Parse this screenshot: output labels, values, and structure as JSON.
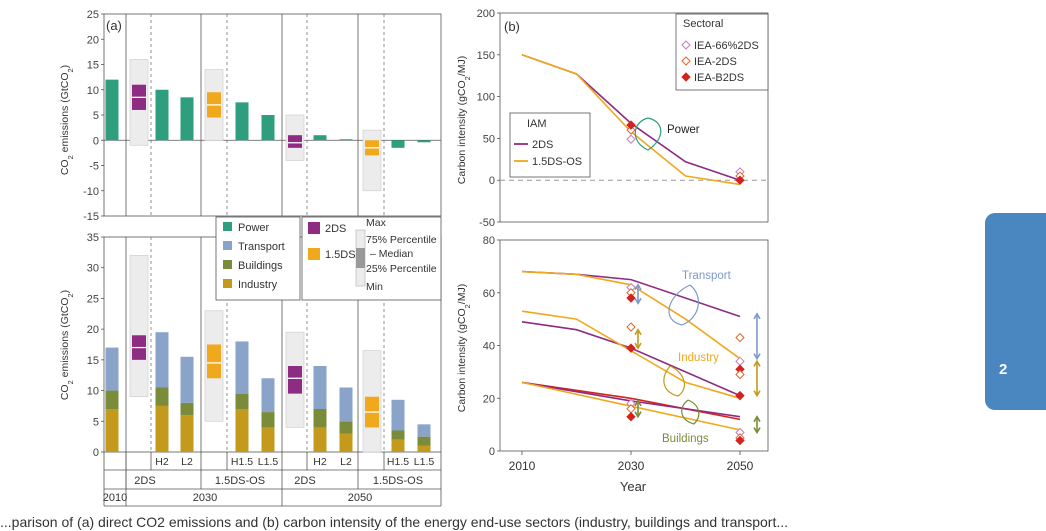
{
  "chart_data": [
    {
      "type": "bar",
      "panel_label": "(a)",
      "top_panel": {
        "ylabel": "CO2 emissions (GtCO2)",
        "ylim": [
          -15,
          25
        ],
        "yticks": [
          "25",
          "20",
          "15",
          "10",
          "5",
          "0",
          "-5",
          "-10",
          "-15"
        ],
        "sector": "Power",
        "bars": [
          {
            "column": "2010",
            "value": 12
          },
          {
            "column": "2030 2DS H2",
            "value": 10
          },
          {
            "column": "2030 2DS L2",
            "value": 8.5
          },
          {
            "column": "2030 1.5DS-OS H1.5",
            "value": 7.5
          },
          {
            "column": "2030 1.5DS-OS L1.5",
            "value": 5
          },
          {
            "column": "2050 2DS H2",
            "value": 1
          },
          {
            "column": "2050 2DS L2",
            "value": 0.2
          },
          {
            "column": "2050 1.5DS-OS H1.5",
            "value": -1.5
          },
          {
            "column": "2050 1.5DS-OS L1.5",
            "value": -0.4
          }
        ],
        "boxes": [
          {
            "column": "2030 2DS",
            "scenario": "2DS",
            "min": -1,
            "q1": 6,
            "median": 8.5,
            "q3": 11,
            "max": 16
          },
          {
            "column": "2030 1.5DS-OS",
            "scenario": "1.5DS",
            "min": 0,
            "q1": 4.5,
            "median": 7,
            "q3": 9.5,
            "max": 14
          },
          {
            "column": "2050 2DS",
            "scenario": "2DS",
            "min": -4,
            "q1": -1.5,
            "median": -0.5,
            "q3": 1,
            "max": 5
          },
          {
            "column": "2050 1.5DS-OS",
            "scenario": "1.5DS",
            "min": -10,
            "q1": -3,
            "median": -1.5,
            "q3": 0,
            "max": 2
          }
        ]
      },
      "bottom_panel": {
        "ylabel": "CO2 emissions (GtCO2)",
        "ylim": [
          0,
          35
        ],
        "yticks": [
          "35",
          "30",
          "25",
          "20",
          "15",
          "10",
          "5",
          "0"
        ],
        "series": [
          {
            "name": "Industry",
            "color": "#c39a1c",
            "values": [
              7,
              7.5,
              6,
              7,
              4,
              4,
              3,
              2,
              1
            ]
          },
          {
            "name": "Buildings",
            "color": "#7a8c3a",
            "values": [
              3,
              3,
              2,
              2.5,
              2.5,
              3,
              2,
              1.5,
              1.5
            ]
          },
          {
            "name": "Transport",
            "color": "#8aa3c9",
            "values": [
              7,
              9,
              7.5,
              8.5,
              5.5,
              7,
              5.5,
              5,
              2
            ]
          }
        ],
        "columns": [
          "2010",
          "2030 2DS H2",
          "2030 2DS L2",
          "2030 1.5DS-OS H1.5",
          "2030 1.5DS-OS L1.5",
          "2050 2DS H2",
          "2050 2DS L2",
          "2050 1.5DS-OS H1.5",
          "2050 1.5DS-OS L1.5"
        ],
        "boxes": [
          {
            "column": "2030 2DS",
            "scenario": "2DS",
            "min": 9,
            "q1": 15,
            "median": 17,
            "q3": 19,
            "max": 32
          },
          {
            "column": "2030 1.5DS-OS",
            "scenario": "1.5DS",
            "min": 5,
            "q1": 12,
            "median": 14.5,
            "q3": 17.5,
            "max": 23
          },
          {
            "column": "2050 2DS",
            "scenario": "2DS",
            "min": 4,
            "q1": 9.5,
            "median": 12,
            "q3": 14,
            "max": 19.5
          },
          {
            "column": "2050 1.5DS-OS",
            "scenario": "1.5DS",
            "min": 0,
            "q1": 4,
            "median": 6.5,
            "q3": 9,
            "max": 16.5
          }
        ]
      },
      "legend": {
        "sectors": [
          {
            "label": "Power",
            "color": "#2e9e7e"
          },
          {
            "label": "Transport",
            "color": "#8aa3c9"
          },
          {
            "label": "Buildings",
            "color": "#7a8c3a"
          },
          {
            "label": "Industry",
            "color": "#c39a1c"
          }
        ],
        "scenarios": [
          {
            "label": "2DS",
            "color": "#8e2b83"
          },
          {
            "label": "1.5DS",
            "color": "#f0a81c"
          }
        ],
        "box_labels": [
          "Max",
          "75% Percentile",
          "Median",
          "25% Percentile",
          "Min"
        ]
      },
      "x_labels": {
        "sub": [
          "H2",
          "L2",
          "H1.5",
          "L1.5",
          "H2",
          "L2",
          "H1.5",
          "L1.5"
        ],
        "scenario": [
          "2DS",
          "1.5DS-OS",
          "2DS",
          "1.5DS-OS"
        ],
        "year": [
          "2010",
          "2030",
          "2050"
        ]
      }
    },
    {
      "type": "line",
      "panel_label": "(b)",
      "xlabel": "Year",
      "xticks": [
        "2010",
        "2030",
        "2050"
      ],
      "top_panel": {
        "ylabel": "Carbon intensity (gCO2/MJ)",
        "ylim": [
          -50,
          200
        ],
        "yticks": [
          "200",
          "150",
          "100",
          "50",
          "0",
          "-50"
        ],
        "annotation": "Power",
        "iam_legend_title": "IAM",
        "series": [
          {
            "name": "2DS",
            "color": "#8e2b83",
            "points": [
              [
                2010,
                150
              ],
              [
                2020,
                127
              ],
              [
                2030,
                68
              ],
              [
                2040,
                22
              ],
              [
                2050,
                0
              ]
            ]
          },
          {
            "name": "1.5DS-OS",
            "color": "#f0a81c",
            "points": [
              [
                2010,
                150
              ],
              [
                2020,
                127
              ],
              [
                2030,
                58
              ],
              [
                2040,
                5
              ],
              [
                2050,
                -5
              ]
            ]
          }
        ],
        "markers": [
          {
            "source": "IEA-66%2DS",
            "x": 2030,
            "y": 49
          },
          {
            "source": "IEA-2DS",
            "x": 2030,
            "y": 60
          },
          {
            "source": "IEA-B2DS",
            "x": 2030,
            "y": 66
          },
          {
            "source": "IEA-66%2DS",
            "x": 2050,
            "y": 10
          },
          {
            "source": "IEA-2DS",
            "x": 2050,
            "y": 5
          },
          {
            "source": "IEA-B2DS",
            "x": 2050,
            "y": 0
          }
        ],
        "sectoral_legend_title": "Sectoral",
        "sectoral_legend": [
          {
            "label": "IEA-66%2DS",
            "color": "#c77bbd",
            "style": "open"
          },
          {
            "label": "IEA-2DS",
            "color": "#e0652a",
            "style": "open"
          },
          {
            "label": "IEA-B2DS",
            "color": "#d4231e",
            "style": "filled"
          }
        ]
      },
      "bottom_panel": {
        "ylabel": "Carbon intensity (gCO2/MJ)",
        "ylim": [
          0,
          80
        ],
        "yticks": [
          "80",
          "60",
          "40",
          "20",
          "0"
        ],
        "annotations": [
          {
            "label": "Transport",
            "color": "#7f99cc"
          },
          {
            "label": "Industry",
            "color": "#f0a81c"
          },
          {
            "label": "Buildings",
            "color": "#7a8c3a"
          }
        ],
        "series": [
          {
            "name": "Transport 2DS",
            "color": "#8e2b83",
            "points": [
              [
                2010,
                68
              ],
              [
                2020,
                67
              ],
              [
                2030,
                65
              ],
              [
                2050,
                51
              ]
            ]
          },
          {
            "name": "Transport 1.5DS-OS",
            "color": "#f0a81c",
            "points": [
              [
                2010,
                68
              ],
              [
                2020,
                67
              ],
              [
                2030,
                63
              ],
              [
                2040,
                50
              ],
              [
                2050,
                35
              ]
            ]
          },
          {
            "name": "Industry 2DS",
            "color": "#8e2b83",
            "points": [
              [
                2010,
                49
              ],
              [
                2020,
                46
              ],
              [
                2030,
                39
              ],
              [
                2040,
                30
              ],
              [
                2050,
                21
              ]
            ]
          },
          {
            "name": "Industry 1.5DS-OS",
            "color": "#f0a81c",
            "points": [
              [
                2010,
                53
              ],
              [
                2020,
                50
              ],
              [
                2030,
                38
              ],
              [
                2040,
                26
              ],
              [
                2050,
                20
              ]
            ]
          },
          {
            "name": "Buildings 2DS",
            "color": "#d4231e",
            "points": [
              [
                2010,
                26
              ],
              [
                2030,
                20
              ],
              [
                2050,
                12
              ]
            ]
          },
          {
            "name": "Buildings 2DS IAM",
            "color": "#8e2b83",
            "points": [
              [
                2010,
                26
              ],
              [
                2030,
                19
              ],
              [
                2050,
                13
              ]
            ]
          },
          {
            "name": "Buildings 1.5DS-OS",
            "color": "#f0a81c",
            "points": [
              [
                2010,
                26
              ],
              [
                2030,
                17
              ],
              [
                2050,
                8
              ]
            ]
          }
        ],
        "markers": [
          {
            "source": "IEA-66%2DS",
            "x": 2030,
            "y": 62
          },
          {
            "source": "IEA-2DS",
            "x": 2030,
            "y": 60
          },
          {
            "source": "IEA-B2DS",
            "x": 2030,
            "y": 58
          },
          {
            "source": "IEA-2DS",
            "x": 2030,
            "y": 47
          },
          {
            "source": "IEA-B2DS",
            "x": 2030,
            "y": 39
          },
          {
            "source": "IEA-66%2DS",
            "x": 2030,
            "y": 18
          },
          {
            "source": "IEA-2DS",
            "x": 2030,
            "y": 16
          },
          {
            "source": "IEA-B2DS",
            "x": 2030,
            "y": 13
          },
          {
            "source": "IEA-2DS",
            "x": 2050,
            "y": 43
          },
          {
            "source": "IEA-66%2DS",
            "x": 2050,
            "y": 34
          },
          {
            "source": "IEA-B2DS",
            "x": 2050,
            "y": 31
          },
          {
            "source": "IEA-2DS",
            "x": 2050,
            "y": 29
          },
          {
            "source": "IEA-B2DS",
            "x": 2050,
            "y": 21
          },
          {
            "source": "IEA-66%2DS",
            "x": 2050,
            "y": 7
          },
          {
            "source": "IEA-2DS",
            "x": 2050,
            "y": 5
          },
          {
            "source": "IEA-B2DS",
            "x": 2050,
            "y": 4
          }
        ],
        "ranges": [
          {
            "x": 2030,
            "from": 63,
            "to": 56,
            "color": "#7f99cc"
          },
          {
            "x": 2030,
            "from": 46,
            "to": 39,
            "color": "#c39a1c"
          },
          {
            "x": 2030,
            "from": 19,
            "to": 13,
            "color": "#7a8c3a"
          },
          {
            "x": 2050,
            "from": 52,
            "to": 35,
            "color": "#7f99cc"
          },
          {
            "x": 2050,
            "from": 34,
            "to": 21,
            "color": "#c39a1c"
          },
          {
            "x": 2050,
            "from": 13,
            "to": 7,
            "color": "#7a8c3a"
          }
        ]
      }
    }
  ],
  "chapter_tab": {
    "number": "2"
  },
  "caption": {
    "text": "...parison of (a) direct CO2 emissions and (b) carbon intensity of the energy end-use sectors (industry, buildings and transport..."
  }
}
